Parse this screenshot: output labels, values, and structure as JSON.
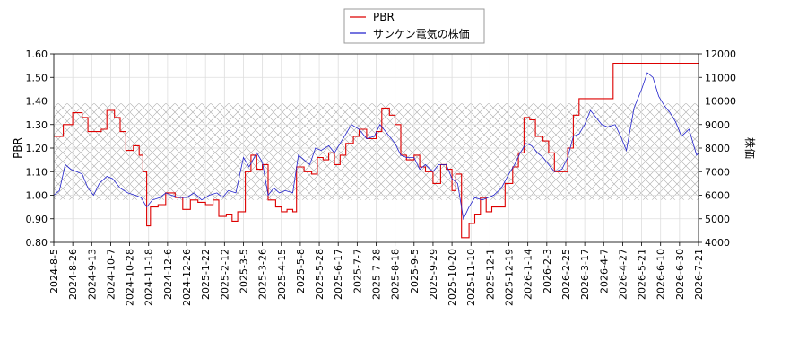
{
  "chart_data": {
    "type": "line",
    "title": "",
    "legend": {
      "placement": "top-center",
      "entries": [
        {
          "label": "PBR",
          "color": "#dd0000"
        },
        {
          "label": "サンケン電気の株価",
          "color": "#2222cc"
        }
      ]
    },
    "y_left": {
      "label": "PBR",
      "range": [
        0.8,
        1.6
      ],
      "ticks": [
        "0.80",
        "0.90",
        "1.00",
        "1.10",
        "1.20",
        "1.30",
        "1.40",
        "1.50",
        "1.60"
      ]
    },
    "y_right": {
      "label": "株価",
      "range": [
        4000,
        12000
      ],
      "ticks": [
        "4000",
        "5000",
        "6000",
        "7000",
        "8000",
        "9000",
        "10000",
        "11000",
        "12000"
      ]
    },
    "x_ticks": [
      "2024-8-5",
      "2024-8-26",
      "2024-9-13",
      "2024-10-7",
      "2024-10-28",
      "2024-11-18",
      "2024-12-6",
      "2024-12-26",
      "2025-1-22",
      "2025-2-12",
      "2025-3-5",
      "2025-3-26",
      "2025-4-15",
      "2025-5-8",
      "2025-5-28",
      "2025-6-17",
      "2025-7-7",
      "2025-7-28",
      "2025-8-18",
      "2025-9-5",
      "2025-9-29",
      "2025-10-20",
      "2025-11-10",
      "2025-12-1",
      "2025-12-19",
      "2026-1-14",
      "2026-2-3",
      "2026-2-25",
      "2026-3-17",
      "2026-4-7",
      "2026-4-27",
      "2026-5-21",
      "2026-6-10",
      "2026-6-30",
      "2026-7-21"
    ],
    "band": {
      "pbr_low": 0.98,
      "pbr_high": 1.39
    },
    "grid": true,
    "series": [
      {
        "name": "PBR",
        "axis": "left",
        "color": "#dd0000",
        "step": true,
        "points": [
          [
            0,
            1.25
          ],
          [
            0.5,
            1.3
          ],
          [
            1.0,
            1.35
          ],
          [
            1.5,
            1.33
          ],
          [
            1.8,
            1.27
          ],
          [
            2.5,
            1.28
          ],
          [
            2.8,
            1.36
          ],
          [
            3.2,
            1.33
          ],
          [
            3.5,
            1.27
          ],
          [
            3.8,
            1.19
          ],
          [
            4.2,
            1.21
          ],
          [
            4.5,
            1.17
          ],
          [
            4.7,
            1.1
          ],
          [
            4.9,
            0.87
          ],
          [
            5.1,
            0.95
          ],
          [
            5.5,
            0.96
          ],
          [
            5.9,
            1.01
          ],
          [
            6.4,
            0.99
          ],
          [
            6.8,
            0.94
          ],
          [
            7.2,
            0.98
          ],
          [
            7.6,
            0.97
          ],
          [
            8.0,
            0.96
          ],
          [
            8.4,
            0.98
          ],
          [
            8.7,
            0.91
          ],
          [
            9.1,
            0.92
          ],
          [
            9.4,
            0.89
          ],
          [
            9.7,
            0.93
          ],
          [
            10.1,
            1.1
          ],
          [
            10.4,
            1.17
          ],
          [
            10.7,
            1.11
          ],
          [
            11.0,
            1.13
          ],
          [
            11.3,
            0.98
          ],
          [
            11.7,
            0.95
          ],
          [
            12.0,
            0.93
          ],
          [
            12.3,
            0.94
          ],
          [
            12.6,
            0.93
          ],
          [
            12.8,
            1.12
          ],
          [
            13.2,
            1.1
          ],
          [
            13.6,
            1.09
          ],
          [
            13.9,
            1.16
          ],
          [
            14.2,
            1.15
          ],
          [
            14.5,
            1.18
          ],
          [
            14.8,
            1.13
          ],
          [
            15.1,
            1.17
          ],
          [
            15.4,
            1.22
          ],
          [
            15.8,
            1.25
          ],
          [
            16.1,
            1.28
          ],
          [
            16.5,
            1.24
          ],
          [
            17.0,
            1.27
          ],
          [
            17.3,
            1.37
          ],
          [
            17.7,
            1.34
          ],
          [
            18.0,
            1.3
          ],
          [
            18.3,
            1.17
          ],
          [
            18.6,
            1.15
          ],
          [
            19.0,
            1.17
          ],
          [
            19.3,
            1.12
          ],
          [
            19.6,
            1.1
          ],
          [
            20.0,
            1.05
          ],
          [
            20.4,
            1.13
          ],
          [
            20.7,
            1.11
          ],
          [
            21.0,
            1.02
          ],
          [
            21.2,
            1.09
          ],
          [
            21.5,
            0.82
          ],
          [
            21.9,
            0.88
          ],
          [
            22.2,
            0.92
          ],
          [
            22.5,
            0.99
          ],
          [
            22.8,
            0.93
          ],
          [
            23.1,
            0.95
          ],
          [
            23.4,
            0.95
          ],
          [
            23.8,
            1.05
          ],
          [
            24.2,
            1.12
          ],
          [
            24.5,
            1.18
          ],
          [
            24.8,
            1.33
          ],
          [
            25.1,
            1.32
          ],
          [
            25.4,
            1.25
          ],
          [
            25.8,
            1.23
          ],
          [
            26.1,
            1.18
          ],
          [
            26.4,
            1.1
          ],
          [
            26.8,
            1.1
          ],
          [
            27.1,
            1.2
          ],
          [
            27.4,
            1.34
          ],
          [
            27.7,
            1.41
          ],
          [
            28.2,
            1.41
          ],
          [
            28.6,
            1.41
          ],
          [
            29.0,
            1.41
          ],
          [
            29.5,
            1.56
          ],
          [
            30.0,
            1.56
          ],
          [
            31.0,
            1.56
          ],
          [
            32.0,
            1.56
          ],
          [
            33.0,
            1.56
          ],
          [
            34.0,
            1.56
          ],
          [
            34.5,
            1.56
          ],
          [
            34.9,
            1.56
          ]
        ]
      },
      {
        "name": "サンケン電気の株価",
        "axis": "right",
        "color": "#2222cc",
        "step": false,
        "points": [
          [
            0,
            6000
          ],
          [
            0.3,
            6200
          ],
          [
            0.6,
            7300
          ],
          [
            0.9,
            7100
          ],
          [
            1.2,
            7000
          ],
          [
            1.5,
            6900
          ],
          [
            1.8,
            6300
          ],
          [
            2.1,
            6000
          ],
          [
            2.4,
            6500
          ],
          [
            2.8,
            6800
          ],
          [
            3.1,
            6700
          ],
          [
            3.5,
            6300
          ],
          [
            3.9,
            6100
          ],
          [
            4.3,
            6000
          ],
          [
            4.6,
            5900
          ],
          [
            4.9,
            5500
          ],
          [
            5.2,
            5800
          ],
          [
            5.6,
            5900
          ],
          [
            5.9,
            6100
          ],
          [
            6.2,
            6000
          ],
          [
            6.6,
            5900
          ],
          [
            7.0,
            5900
          ],
          [
            7.4,
            6100
          ],
          [
            7.8,
            5800
          ],
          [
            8.2,
            6000
          ],
          [
            8.6,
            6100
          ],
          [
            8.9,
            5900
          ],
          [
            9.2,
            6200
          ],
          [
            9.6,
            6100
          ],
          [
            10.0,
            7600
          ],
          [
            10.3,
            7200
          ],
          [
            10.7,
            7800
          ],
          [
            11.0,
            7400
          ],
          [
            11.3,
            6000
          ],
          [
            11.6,
            6300
          ],
          [
            11.9,
            6100
          ],
          [
            12.2,
            6200
          ],
          [
            12.6,
            6100
          ],
          [
            12.9,
            7700
          ],
          [
            13.2,
            7500
          ],
          [
            13.5,
            7300
          ],
          [
            13.8,
            8000
          ],
          [
            14.1,
            7900
          ],
          [
            14.5,
            8100
          ],
          [
            14.8,
            7800
          ],
          [
            15.1,
            8200
          ],
          [
            15.4,
            8600
          ],
          [
            15.7,
            9000
          ],
          [
            16.1,
            8800
          ],
          [
            16.5,
            8400
          ],
          [
            16.9,
            8500
          ],
          [
            17.2,
            9000
          ],
          [
            17.6,
            8600
          ],
          [
            18.0,
            8200
          ],
          [
            18.3,
            7700
          ],
          [
            18.6,
            7600
          ],
          [
            19.0,
            7600
          ],
          [
            19.3,
            7100
          ],
          [
            19.6,
            7300
          ],
          [
            20.0,
            7000
          ],
          [
            20.3,
            7300
          ],
          [
            20.7,
            7300
          ],
          [
            21.0,
            6700
          ],
          [
            21.3,
            6500
          ],
          [
            21.6,
            5000
          ],
          [
            21.9,
            5500
          ],
          [
            22.2,
            5900
          ],
          [
            22.6,
            5800
          ],
          [
            22.9,
            5900
          ],
          [
            23.2,
            6000
          ],
          [
            23.6,
            6300
          ],
          [
            24.0,
            6900
          ],
          [
            24.3,
            7300
          ],
          [
            24.6,
            7800
          ],
          [
            24.9,
            8200
          ],
          [
            25.2,
            8100
          ],
          [
            25.5,
            7800
          ],
          [
            25.8,
            7600
          ],
          [
            26.1,
            7300
          ],
          [
            26.4,
            7000
          ],
          [
            26.8,
            7100
          ],
          [
            27.1,
            7600
          ],
          [
            27.4,
            8500
          ],
          [
            27.7,
            8600
          ],
          [
            28.0,
            9000
          ],
          [
            28.3,
            9600
          ],
          [
            28.6,
            9300
          ],
          [
            28.9,
            9000
          ],
          [
            29.2,
            8900
          ],
          [
            29.6,
            9000
          ],
          [
            29.9,
            8500
          ],
          [
            30.2,
            7900
          ],
          [
            30.6,
            9700
          ],
          [
            31.0,
            10500
          ],
          [
            31.3,
            11200
          ],
          [
            31.6,
            11000
          ],
          [
            31.9,
            10200
          ],
          [
            32.2,
            9800
          ],
          [
            32.5,
            9500
          ],
          [
            32.8,
            9100
          ],
          [
            33.1,
            8500
          ],
          [
            33.5,
            8800
          ],
          [
            33.9,
            7700
          ],
          [
            34.2,
            8000
          ],
          [
            34.5,
            8200
          ],
          [
            34.9,
            8300
          ]
        ]
      }
    ]
  }
}
